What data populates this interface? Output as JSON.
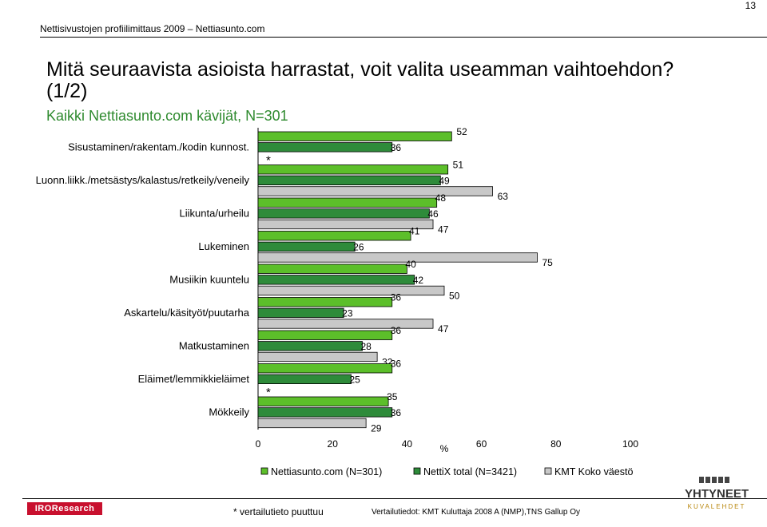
{
  "page": {
    "number": "13",
    "header": "Nettisivustojen profiilimittaus 2009 – Nettiasunto.com",
    "title": "Mitä seuraavista asioista harrastat, voit valita useamman vaihtoehdon? (1/2)",
    "subtitle": "Kaikki Nettiasunto.com kävijät, N=301",
    "footer_note": "* vertailutieto puuttuu",
    "footer_source": "Vertailutiedot: KMT Kuluttaja 2008 A (NMP),TNS Gallup Oy",
    "logo_left": "IROResearch",
    "logo_right_line1": "YHTYNEET",
    "logo_right_line2": "KUVALEHDET"
  },
  "chart_data": {
    "type": "bar",
    "orientation": "horizontal",
    "xlabel": "%",
    "xlim": [
      0,
      100
    ],
    "xticks": [
      0,
      20,
      40,
      60,
      80,
      100
    ],
    "legend_position": "bottom",
    "missing_marker": "*",
    "categories": [
      "Sisustaminen/rakentam./kodin kunnost.",
      "Luonn.liikk./metsästys/kalastus/retkeily/veneily",
      "Liikunta/urheilu",
      "Lukeminen",
      "Musiikin kuuntelu",
      "Askartelu/käsityöt/puutarha",
      "Matkustaminen",
      "Eläimet/lemmikkieläimet",
      "Mökkeily"
    ],
    "series": [
      {
        "name": "Nettiasunto.com (N=301)",
        "color": "#5cbf2a",
        "values": [
          52,
          51,
          48,
          41,
          40,
          36,
          36,
          36,
          35
        ]
      },
      {
        "name": "NettiX total (N=3421)",
        "color": "#2e8b3a",
        "values": [
          36,
          49,
          46,
          26,
          42,
          23,
          28,
          25,
          36
        ]
      },
      {
        "name": "KMT Koko väestö",
        "color": "#c8c8c8",
        "values": [
          null,
          63,
          47,
          75,
          50,
          47,
          32,
          null,
          29
        ]
      }
    ]
  }
}
